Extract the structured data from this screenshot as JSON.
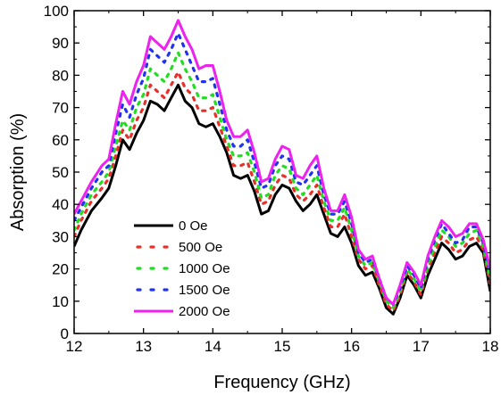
{
  "chart_data": {
    "type": "line",
    "xlabel": "Frequency (GHz)",
    "ylabel": "Absorption (%)",
    "xlim": [
      12,
      18
    ],
    "ylim": [
      0,
      100
    ],
    "x_ticks": [
      "12",
      "13",
      "14",
      "15",
      "16",
      "17",
      "18"
    ],
    "y_ticks": [
      "0",
      "10",
      "20",
      "30",
      "40",
      "50",
      "60",
      "70",
      "80",
      "90",
      "100"
    ],
    "legend_position": "lower-left",
    "grid": false,
    "series": [
      {
        "name": "0 Oe",
        "color": "#000000",
        "style": "solid",
        "points": [
          [
            12.0,
            27
          ],
          [
            12.1,
            32
          ],
          [
            12.25,
            38
          ],
          [
            12.4,
            42
          ],
          [
            12.5,
            45
          ],
          [
            12.6,
            52
          ],
          [
            12.7,
            60
          ],
          [
            12.8,
            57
          ],
          [
            12.9,
            62
          ],
          [
            13.0,
            66
          ],
          [
            13.1,
            72
          ],
          [
            13.2,
            71
          ],
          [
            13.3,
            69
          ],
          [
            13.4,
            73
          ],
          [
            13.5,
            77
          ],
          [
            13.6,
            72
          ],
          [
            13.7,
            70
          ],
          [
            13.8,
            65
          ],
          [
            13.9,
            64
          ],
          [
            14.0,
            65
          ],
          [
            14.1,
            61
          ],
          [
            14.2,
            56
          ],
          [
            14.3,
            49
          ],
          [
            14.4,
            48
          ],
          [
            14.5,
            49
          ],
          [
            14.6,
            44
          ],
          [
            14.7,
            37
          ],
          [
            14.8,
            38
          ],
          [
            14.9,
            43
          ],
          [
            15.0,
            46
          ],
          [
            15.1,
            45
          ],
          [
            15.2,
            41
          ],
          [
            15.3,
            38
          ],
          [
            15.4,
            40
          ],
          [
            15.5,
            43
          ],
          [
            15.6,
            37
          ],
          [
            15.7,
            31
          ],
          [
            15.8,
            30
          ],
          [
            15.9,
            33
          ],
          [
            16.0,
            28
          ],
          [
            16.1,
            21
          ],
          [
            16.2,
            18
          ],
          [
            16.3,
            19
          ],
          [
            16.4,
            14
          ],
          [
            16.5,
            8
          ],
          [
            16.6,
            6
          ],
          [
            16.7,
            11
          ],
          [
            16.8,
            18
          ],
          [
            16.9,
            15
          ],
          [
            17.0,
            11
          ],
          [
            17.1,
            18
          ],
          [
            17.2,
            23
          ],
          [
            17.3,
            28
          ],
          [
            17.4,
            26
          ],
          [
            17.5,
            23
          ],
          [
            17.6,
            24
          ],
          [
            17.7,
            27
          ],
          [
            17.8,
            28
          ],
          [
            17.9,
            25
          ],
          [
            18.0,
            13
          ]
        ]
      },
      {
        "name": "500 Oe",
        "color": "#e8302a",
        "style": "dotted",
        "points": [
          [
            12.0,
            30
          ],
          [
            12.1,
            35
          ],
          [
            12.25,
            41
          ],
          [
            12.4,
            45
          ],
          [
            12.5,
            48
          ],
          [
            12.6,
            55
          ],
          [
            12.7,
            63
          ],
          [
            12.8,
            60
          ],
          [
            12.9,
            66
          ],
          [
            13.0,
            70
          ],
          [
            13.1,
            77
          ],
          [
            13.2,
            75
          ],
          [
            13.3,
            73
          ],
          [
            13.4,
            77
          ],
          [
            13.5,
            81
          ],
          [
            13.6,
            76
          ],
          [
            13.7,
            74
          ],
          [
            13.8,
            69
          ],
          [
            13.9,
            69
          ],
          [
            14.0,
            70
          ],
          [
            14.1,
            64
          ],
          [
            14.2,
            58
          ],
          [
            14.3,
            52
          ],
          [
            14.4,
            52
          ],
          [
            14.5,
            53
          ],
          [
            14.6,
            47
          ],
          [
            14.7,
            40
          ],
          [
            14.8,
            41
          ],
          [
            14.9,
            46
          ],
          [
            15.0,
            49
          ],
          [
            15.1,
            48
          ],
          [
            15.2,
            43
          ],
          [
            15.3,
            41
          ],
          [
            15.4,
            43
          ],
          [
            15.5,
            46
          ],
          [
            15.6,
            39
          ],
          [
            15.7,
            33
          ],
          [
            15.8,
            33
          ],
          [
            15.9,
            37
          ],
          [
            16.0,
            30
          ],
          [
            16.1,
            23
          ],
          [
            16.2,
            20
          ],
          [
            16.3,
            21
          ],
          [
            16.4,
            15
          ],
          [
            16.5,
            9
          ],
          [
            16.6,
            7
          ],
          [
            16.7,
            12
          ],
          [
            16.8,
            19
          ],
          [
            16.9,
            16
          ],
          [
            17.0,
            12
          ],
          [
            17.1,
            20
          ],
          [
            17.2,
            25
          ],
          [
            17.3,
            30
          ],
          [
            17.4,
            28
          ],
          [
            17.5,
            25
          ],
          [
            17.6,
            26
          ],
          [
            17.7,
            29
          ],
          [
            17.8,
            30
          ],
          [
            17.9,
            26
          ],
          [
            18.0,
            15
          ]
        ]
      },
      {
        "name": "1000 Oe",
        "color": "#22dd22",
        "style": "dotted",
        "points": [
          [
            12.0,
            32
          ],
          [
            12.1,
            37
          ],
          [
            12.25,
            43
          ],
          [
            12.4,
            47
          ],
          [
            12.5,
            50
          ],
          [
            12.6,
            58
          ],
          [
            12.7,
            66
          ],
          [
            12.8,
            63
          ],
          [
            12.9,
            70
          ],
          [
            13.0,
            74
          ],
          [
            13.1,
            82
          ],
          [
            13.2,
            80
          ],
          [
            13.3,
            78
          ],
          [
            13.4,
            82
          ],
          [
            13.5,
            87
          ],
          [
            13.6,
            82
          ],
          [
            13.7,
            78
          ],
          [
            13.8,
            73
          ],
          [
            13.9,
            73
          ],
          [
            14.0,
            74
          ],
          [
            14.1,
            67
          ],
          [
            14.2,
            60
          ],
          [
            14.3,
            55
          ],
          [
            14.4,
            55
          ],
          [
            14.5,
            56
          ],
          [
            14.6,
            50
          ],
          [
            14.7,
            42
          ],
          [
            14.8,
            43
          ],
          [
            14.9,
            49
          ],
          [
            15.0,
            52
          ],
          [
            15.1,
            51
          ],
          [
            15.2,
            45
          ],
          [
            15.3,
            43
          ],
          [
            15.4,
            46
          ],
          [
            15.5,
            49
          ],
          [
            15.6,
            41
          ],
          [
            15.7,
            35
          ],
          [
            15.8,
            35
          ],
          [
            15.9,
            39
          ],
          [
            16.0,
            32
          ],
          [
            16.1,
            24
          ],
          [
            16.2,
            21
          ],
          [
            16.3,
            22
          ],
          [
            16.4,
            16
          ],
          [
            16.5,
            10
          ],
          [
            16.6,
            8
          ],
          [
            16.7,
            13
          ],
          [
            16.8,
            20
          ],
          [
            16.9,
            17
          ],
          [
            17.0,
            13
          ],
          [
            17.1,
            21
          ],
          [
            17.2,
            27
          ],
          [
            17.3,
            32
          ],
          [
            17.4,
            30
          ],
          [
            17.5,
            27
          ],
          [
            17.6,
            28
          ],
          [
            17.7,
            31
          ],
          [
            17.8,
            32
          ],
          [
            17.9,
            27
          ],
          [
            18.0,
            17
          ]
        ]
      },
      {
        "name": "1500 Oe",
        "color": "#2233ee",
        "style": "dotted",
        "points": [
          [
            12.0,
            35
          ],
          [
            12.1,
            39
          ],
          [
            12.25,
            45
          ],
          [
            12.4,
            50
          ],
          [
            12.5,
            52
          ],
          [
            12.6,
            62
          ],
          [
            12.7,
            71
          ],
          [
            12.8,
            67
          ],
          [
            12.9,
            74
          ],
          [
            13.0,
            79
          ],
          [
            13.1,
            88
          ],
          [
            13.2,
            86
          ],
          [
            13.3,
            84
          ],
          [
            13.4,
            88
          ],
          [
            13.5,
            93
          ],
          [
            13.6,
            88
          ],
          [
            13.7,
            83
          ],
          [
            13.8,
            78
          ],
          [
            13.9,
            78
          ],
          [
            14.0,
            79
          ],
          [
            14.1,
            71
          ],
          [
            14.2,
            63
          ],
          [
            14.3,
            58
          ],
          [
            14.4,
            58
          ],
          [
            14.5,
            60
          ],
          [
            14.6,
            53
          ],
          [
            14.7,
            45
          ],
          [
            14.8,
            46
          ],
          [
            14.9,
            52
          ],
          [
            15.0,
            55
          ],
          [
            15.1,
            54
          ],
          [
            15.2,
            47
          ],
          [
            15.3,
            46
          ],
          [
            15.4,
            49
          ],
          [
            15.5,
            52
          ],
          [
            15.6,
            43
          ],
          [
            15.7,
            37
          ],
          [
            15.8,
            37
          ],
          [
            15.9,
            41
          ],
          [
            16.0,
            34
          ],
          [
            16.1,
            25
          ],
          [
            16.2,
            22
          ],
          [
            16.3,
            23
          ],
          [
            16.4,
            17
          ],
          [
            16.5,
            11
          ],
          [
            16.6,
            9
          ],
          [
            16.7,
            14
          ],
          [
            16.8,
            21
          ],
          [
            16.9,
            18
          ],
          [
            17.0,
            14
          ],
          [
            17.1,
            23
          ],
          [
            17.2,
            29
          ],
          [
            17.3,
            34
          ],
          [
            17.4,
            31
          ],
          [
            17.5,
            28
          ],
          [
            17.6,
            29
          ],
          [
            17.7,
            33
          ],
          [
            17.8,
            33
          ],
          [
            17.9,
            28
          ],
          [
            18.0,
            19
          ]
        ]
      },
      {
        "name": "2000 Oe",
        "color": "#ee22ee",
        "style": "solid",
        "points": [
          [
            12.0,
            37
          ],
          [
            12.1,
            41
          ],
          [
            12.25,
            47
          ],
          [
            12.4,
            52
          ],
          [
            12.5,
            54
          ],
          [
            12.6,
            65
          ],
          [
            12.7,
            75
          ],
          [
            12.8,
            71
          ],
          [
            12.9,
            78
          ],
          [
            13.0,
            83
          ],
          [
            13.1,
            92
          ],
          [
            13.2,
            90
          ],
          [
            13.3,
            88
          ],
          [
            13.4,
            92
          ],
          [
            13.5,
            97
          ],
          [
            13.6,
            92
          ],
          [
            13.7,
            88
          ],
          [
            13.8,
            82
          ],
          [
            13.9,
            83
          ],
          [
            14.0,
            83
          ],
          [
            14.1,
            75
          ],
          [
            14.2,
            66
          ],
          [
            14.3,
            61
          ],
          [
            14.4,
            61
          ],
          [
            14.5,
            63
          ],
          [
            14.6,
            56
          ],
          [
            14.7,
            47
          ],
          [
            14.8,
            48
          ],
          [
            14.9,
            54
          ],
          [
            15.0,
            58
          ],
          [
            15.1,
            57
          ],
          [
            15.2,
            49
          ],
          [
            15.3,
            48
          ],
          [
            15.4,
            52
          ],
          [
            15.5,
            55
          ],
          [
            15.6,
            45
          ],
          [
            15.7,
            38
          ],
          [
            15.8,
            38
          ],
          [
            15.9,
            43
          ],
          [
            16.0,
            36
          ],
          [
            16.1,
            26
          ],
          [
            16.2,
            23
          ],
          [
            16.3,
            24
          ],
          [
            16.4,
            17
          ],
          [
            16.5,
            11
          ],
          [
            16.6,
            9
          ],
          [
            16.7,
            15
          ],
          [
            16.8,
            22
          ],
          [
            16.9,
            19
          ],
          [
            17.0,
            15
          ],
          [
            17.1,
            24
          ],
          [
            17.2,
            30
          ],
          [
            17.3,
            35
          ],
          [
            17.4,
            33
          ],
          [
            17.5,
            30
          ],
          [
            17.6,
            31
          ],
          [
            17.7,
            34
          ],
          [
            17.8,
            34
          ],
          [
            17.9,
            29
          ],
          [
            18.0,
            20
          ]
        ]
      }
    ]
  }
}
